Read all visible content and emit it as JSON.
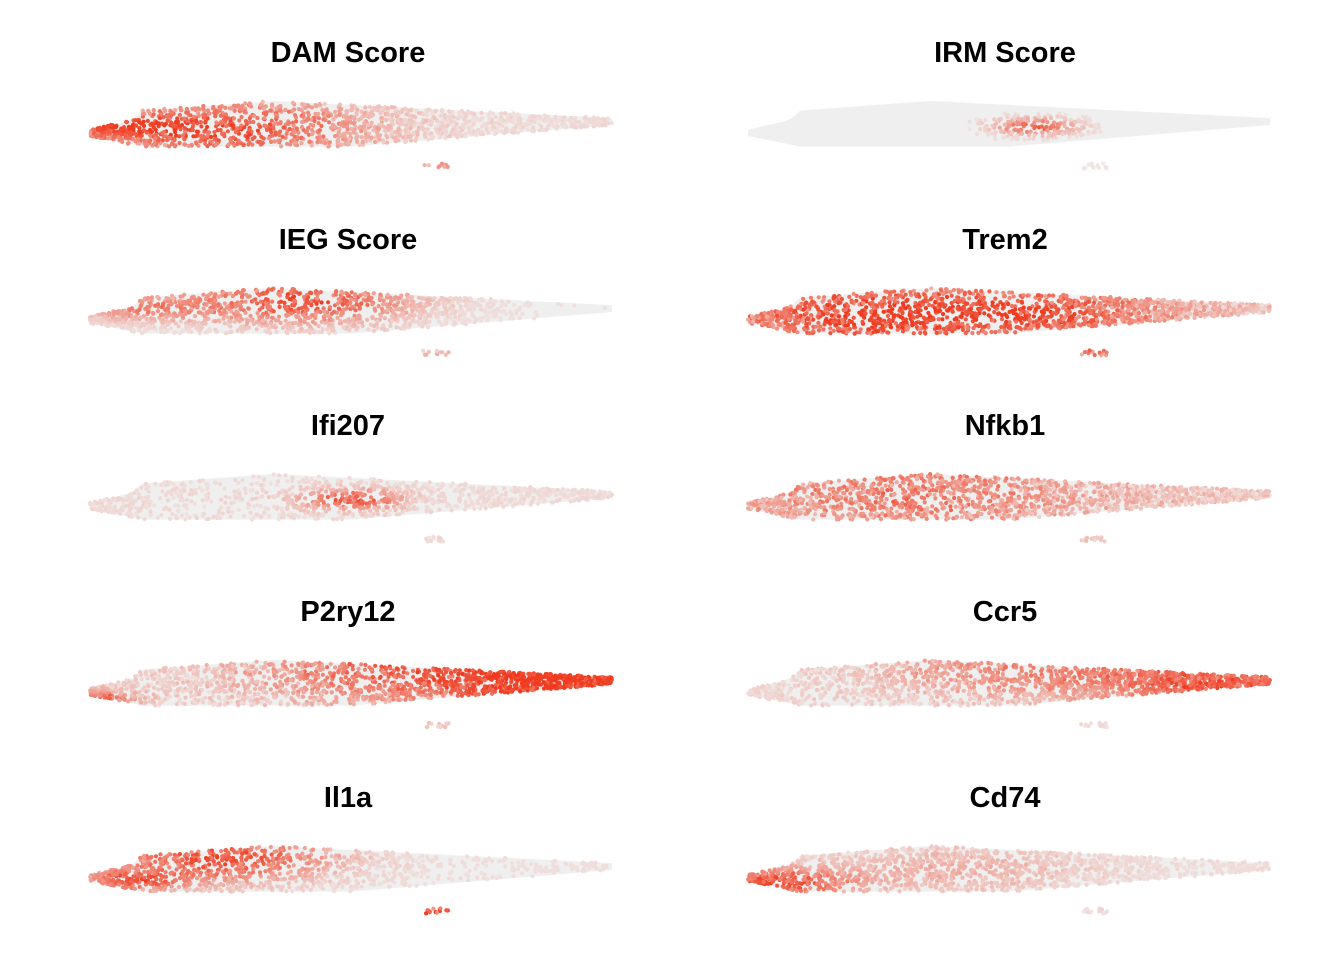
{
  "chart_data": {
    "type": "scatter",
    "description_note": "",
    "colors": {
      "low": "#efefef",
      "high": "#f03b20"
    },
    "panels": [
      {
        "title": "DAM Score",
        "hotspots": [
          {
            "x": 0.25,
            "y": 0.6,
            "r": 0.28,
            "w": 1.0
          },
          {
            "x": 0.05,
            "y": 0.55,
            "r": 0.1,
            "w": 0.6
          }
        ],
        "baseline": 0.15,
        "upper": 0.6,
        "island": 0.35
      },
      {
        "title": "IRM Score",
        "hotspots": [
          {
            "x": 0.55,
            "y": 0.55,
            "r": 0.08,
            "w": 0.9
          }
        ],
        "baseline": 0.05,
        "upper": 0.5,
        "island": 0.05
      },
      {
        "title": "IEG Score",
        "hotspots": [
          {
            "x": 0.4,
            "y": 0.3,
            "r": 0.22,
            "w": 1.0
          },
          {
            "x": 0.1,
            "y": 0.45,
            "r": 0.12,
            "w": 0.6
          }
        ],
        "baseline": 0.08,
        "upper": 0.9,
        "island": 0.25
      },
      {
        "title": "Trem2",
        "hotspots": [
          {
            "x": 0.25,
            "y": 0.6,
            "r": 0.3,
            "w": 0.95
          },
          {
            "x": 0.6,
            "y": 0.5,
            "r": 0.25,
            "w": 0.6
          }
        ],
        "baseline": 0.35,
        "upper": 0.6,
        "island": 0.55
      },
      {
        "title": "Ifi207",
        "hotspots": [
          {
            "x": 0.5,
            "y": 0.55,
            "r": 0.1,
            "w": 0.9
          }
        ],
        "baseline": 0.15,
        "upper": 0.5,
        "island": 0.1
      },
      {
        "title": "Nfkb1",
        "hotspots": [
          {
            "x": 0.3,
            "y": 0.45,
            "r": 0.35,
            "w": 0.55
          }
        ],
        "baseline": 0.35,
        "upper": 0.5,
        "island": 0.2
      },
      {
        "title": "P2ry12",
        "hotspots": [
          {
            "x": 0.95,
            "y": 0.5,
            "r": 0.25,
            "w": 1.0
          },
          {
            "x": 0.0,
            "y": 0.85,
            "r": 0.08,
            "w": 1.0
          },
          {
            "x": 0.6,
            "y": 0.25,
            "r": 0.3,
            "w": 0.75
          }
        ],
        "baseline": 0.25,
        "upper": 0.9,
        "island": 0.2
      },
      {
        "title": "Ccr5",
        "hotspots": [
          {
            "x": 0.9,
            "y": 0.5,
            "r": 0.25,
            "w": 0.85
          },
          {
            "x": 0.5,
            "y": 0.25,
            "r": 0.25,
            "w": 0.55
          }
        ],
        "baseline": 0.2,
        "upper": 0.9,
        "island": 0.1
      },
      {
        "title": "Il1a",
        "hotspots": [
          {
            "x": 0.25,
            "y": 0.3,
            "r": 0.22,
            "w": 1.0
          },
          {
            "x": 0.08,
            "y": 0.75,
            "r": 0.1,
            "w": 0.8
          }
        ],
        "baseline": 0.1,
        "upper": 0.9,
        "island": 0.85
      },
      {
        "title": "Cd74",
        "hotspots": [
          {
            "x": 0.05,
            "y": 0.8,
            "r": 0.15,
            "w": 1.0
          },
          {
            "x": 0.4,
            "y": 0.5,
            "r": 0.25,
            "w": 0.35
          }
        ],
        "baseline": 0.12,
        "upper": 0.9,
        "island": 0.1
      }
    ]
  }
}
